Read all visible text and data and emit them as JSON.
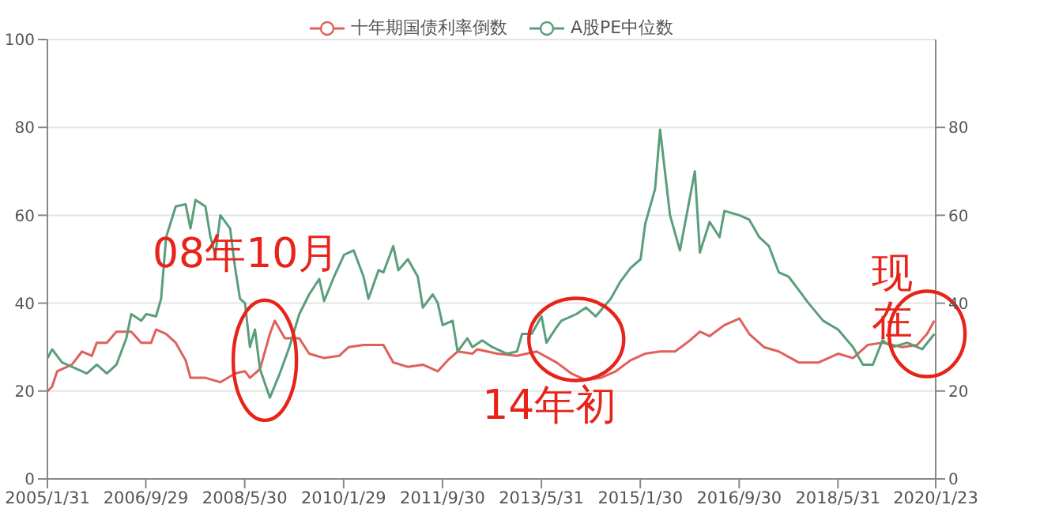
{
  "chart_data": {
    "type": "line",
    "xlim": [
      "2005-01-31",
      "2020-01-23"
    ],
    "xticks": [
      {
        "value": "2005-01-31",
        "label": "2005/1/31"
      },
      {
        "value": "2006-09-29",
        "label": "2006/9/29"
      },
      {
        "value": "2008-05-30",
        "label": "2008/5/30"
      },
      {
        "value": "2010-01-29",
        "label": "2010/1/29"
      },
      {
        "value": "2011-09-30",
        "label": "2011/9/30"
      },
      {
        "value": "2013-05-31",
        "label": "2013/5/31"
      },
      {
        "value": "2015-01-30",
        "label": "2015/1/30"
      },
      {
        "value": "2016-09-30",
        "label": "2016/9/30"
      },
      {
        "value": "2018-05-31",
        "label": "2018/5/31"
      },
      {
        "value": "2020-01-23",
        "label": "2020/1/23"
      }
    ],
    "ylim": [
      0,
      100
    ],
    "yticks": [
      0,
      20,
      40,
      60,
      80,
      100
    ],
    "y2lim": [
      0,
      100
    ],
    "y2ticks": [
      0,
      20,
      40,
      60,
      80
    ],
    "grid": "y",
    "legend": "top",
    "marker": "none",
    "line_style": "solid",
    "series": [
      {
        "name": "十年期国债利率倒数",
        "color": "#e0605a",
        "x": [
          "2005-02",
          "2005-03",
          "2005-04",
          "2005-07",
          "2005-09",
          "2005-11",
          "2005-12",
          "2006-02",
          "2006-04",
          "2006-07",
          "2006-09",
          "2006-11",
          "2006-12",
          "2007-02",
          "2007-04",
          "2007-06",
          "2007-07",
          "2007-10",
          "2008-01",
          "2008-04",
          "2008-06",
          "2008-07",
          "2008-09",
          "2008-11",
          "2008-12",
          "2009-02",
          "2009-05",
          "2009-07",
          "2009-10",
          "2010-01",
          "2010-03",
          "2010-06",
          "2010-10",
          "2010-12",
          "2011-03",
          "2011-06",
          "2011-09",
          "2011-11",
          "2012-01",
          "2012-04",
          "2012-05",
          "2012-09",
          "2013-01",
          "2013-05",
          "2013-09",
          "2013-12",
          "2014-03",
          "2014-06",
          "2014-09",
          "2014-12",
          "2015-03",
          "2015-06",
          "2015-09",
          "2015-12",
          "2016-02",
          "2016-04",
          "2016-07",
          "2016-10",
          "2016-12",
          "2017-03",
          "2017-06",
          "2017-10",
          "2018-02",
          "2018-06",
          "2018-09",
          "2018-12",
          "2019-03",
          "2019-07",
          "2019-10",
          "2019-12",
          "2020-01-15"
        ],
        "values": [
          20,
          21,
          24.5,
          26,
          29,
          28,
          31,
          31,
          33.5,
          33.5,
          31,
          31,
          34,
          33,
          31,
          27,
          23,
          23,
          22,
          24,
          24.5,
          23,
          25,
          33,
          36,
          32,
          32,
          28.5,
          27.5,
          28,
          30,
          30.5,
          30.5,
          26.5,
          25.5,
          26,
          24.5,
          27,
          29,
          28.5,
          29.5,
          28.5,
          28,
          29,
          26.5,
          24,
          22.5,
          23,
          24.5,
          27,
          28.5,
          29,
          29,
          31.5,
          33.5,
          32.5,
          35,
          36.5,
          33,
          30,
          29,
          26.5,
          26.5,
          28.5,
          27.5,
          30.5,
          31,
          30,
          30.5,
          33,
          36
        ]
      },
      {
        "name": "A股PE中位数",
        "color": "#5a9e7c",
        "x": [
          "2005-02",
          "2005-03",
          "2005-05",
          "2005-07",
          "2005-10",
          "2005-12",
          "2006-02",
          "2006-04",
          "2006-06",
          "2006-07",
          "2006-09",
          "2006-10",
          "2006-12",
          "2007-01",
          "2007-02",
          "2007-04",
          "2007-06",
          "2007-07",
          "2007-08",
          "2007-10",
          "2007-11",
          "2007-12",
          "2008-01",
          "2008-03",
          "2008-04",
          "2008-05",
          "2008-06",
          "2008-07",
          "2008-08",
          "2008-09",
          "2008-11",
          "2009-01",
          "2009-03",
          "2009-05",
          "2009-07",
          "2009-09",
          "2009-10",
          "2009-12",
          "2010-02",
          "2010-04",
          "2010-06",
          "2010-07",
          "2010-09",
          "2010-10",
          "2010-12",
          "2011-01",
          "2011-03",
          "2011-05",
          "2011-06",
          "2011-08",
          "2011-09",
          "2011-10",
          "2011-12",
          "2012-01",
          "2012-03",
          "2012-04",
          "2012-06",
          "2012-08",
          "2012-11",
          "2013-01",
          "2013-02",
          "2013-04",
          "2013-06",
          "2013-07",
          "2013-09",
          "2013-10",
          "2014-01",
          "2014-03",
          "2014-05",
          "2014-08",
          "2014-10",
          "2014-12",
          "2015-02",
          "2015-03",
          "2015-05",
          "2015-06",
          "2015-08",
          "2015-10",
          "2016-01",
          "2016-02",
          "2016-04",
          "2016-06",
          "2016-07",
          "2016-10",
          "2016-12",
          "2017-02",
          "2017-04",
          "2017-06",
          "2017-08",
          "2017-10",
          "2017-12",
          "2018-03",
          "2018-06",
          "2018-09",
          "2018-11",
          "2019-01",
          "2019-03",
          "2019-05",
          "2019-08",
          "2019-11",
          "2020-01-15"
        ],
        "values": [
          27.5,
          29.5,
          26.5,
          25.5,
          24,
          26,
          24,
          26,
          32,
          37.5,
          36,
          37.5,
          37,
          41,
          55,
          62,
          62.5,
          57,
          63.5,
          62,
          55,
          51,
          60,
          57,
          48,
          41,
          40,
          30,
          34,
          25,
          18.5,
          24,
          30,
          37.5,
          42,
          45.5,
          40.5,
          46,
          51,
          52,
          46,
          41,
          47.5,
          47,
          53,
          47.5,
          50,
          46,
          39,
          42,
          40,
          35,
          36,
          29,
          32,
          30,
          31.5,
          30,
          28.5,
          29,
          33,
          33,
          37,
          31,
          34.5,
          36,
          37.5,
          39,
          37,
          41,
          45,
          48,
          50,
          58,
          66,
          79.5,
          60,
          52,
          70,
          51.5,
          58.5,
          55,
          61,
          60,
          59,
          55,
          53,
          47,
          46,
          43,
          40,
          36,
          34,
          30,
          26,
          26,
          31.5,
          30,
          31,
          29.5,
          33
        ]
      }
    ],
    "annotations": [
      {
        "text": "08年10月",
        "x": "2008-10",
        "y": 27
      },
      {
        "text": "14年初",
        "x": "2014-01",
        "y": 37.5
      },
      {
        "text": "现在",
        "x": "2019-12",
        "y": 33
      }
    ]
  }
}
